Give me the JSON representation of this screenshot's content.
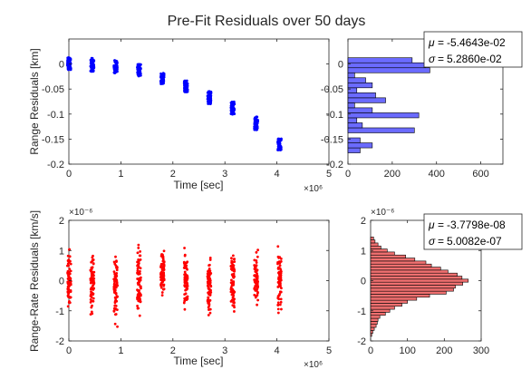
{
  "figure": {
    "title": "Pre-Fit Residuals over 50 days"
  },
  "chart_data": [
    {
      "type": "scatter",
      "panel": "range-scatter",
      "xlabel": "Time [sec]",
      "ylabel": "Range Residuals [km]",
      "x_exponent_label": "×10⁶",
      "xlim": [
        0,
        5000000
      ],
      "ylim": [
        -0.2,
        0.05
      ],
      "xticks": [
        0,
        1,
        2,
        3,
        4,
        5
      ],
      "xtick_labels": [
        "0",
        "1",
        "2",
        "3",
        "4",
        "5"
      ],
      "yticks": [
        0,
        -0.05,
        -0.1,
        -0.15,
        -0.2
      ],
      "ytick_labels": [
        "0",
        "-0.05",
        "-0.1",
        "-0.15",
        "-0.2"
      ],
      "color": "#0000ff",
      "series": [
        {
          "x": [
            5000,
            450000,
            900000,
            1350000,
            1800000,
            2250000,
            2700000,
            3150000,
            3600000,
            4050000
          ],
          "y_min": [
            -0.012,
            -0.015,
            -0.018,
            -0.025,
            -0.04,
            -0.057,
            -0.08,
            -0.101,
            -0.132,
            -0.172
          ],
          "y_max": [
            0.013,
            0.012,
            0.008,
            0.0,
            -0.018,
            -0.033,
            -0.054,
            -0.075,
            -0.105,
            -0.149
          ]
        }
      ]
    },
    {
      "type": "bar",
      "orientation": "horizontal",
      "panel": "range-histogram",
      "xlim": [
        0,
        700
      ],
      "ylim": [
        -0.2,
        0.05
      ],
      "xticks": [
        0,
        200,
        400,
        600
      ],
      "xtick_labels": [
        "0",
        "200",
        "400",
        "600"
      ],
      "yticks": [
        0,
        -0.05,
        -0.1,
        -0.15,
        -0.2
      ],
      "ytick_labels": [
        "0",
        "-0.05",
        "-0.1",
        "-0.15",
        "-0.2"
      ],
      "bar_color": "#6b6bff",
      "bins": [
        -0.1725,
        -0.1625,
        -0.1525,
        -0.1425,
        -0.1325,
        -0.1225,
        -0.1125,
        -0.1025,
        -0.0925,
        -0.0825,
        -0.0725,
        -0.0625,
        -0.0525,
        -0.0425,
        -0.0325,
        -0.0225,
        -0.0125,
        -0.0025,
        0.0075
      ],
      "counts": [
        55,
        110,
        55,
        0,
        300,
        65,
        40,
        320,
        110,
        30,
        170,
        125,
        40,
        110,
        80,
        30,
        370,
        350,
        290
      ],
      "bin_width": 0.01,
      "stats": {
        "mu": "-5.4643e-02",
        "sigma": "5.2860e-02"
      }
    },
    {
      "type": "scatter",
      "panel": "range-rate-scatter",
      "xlabel": "Time [sec]",
      "ylabel": "Range-Rate Residuals [km/s]",
      "x_exponent_label": "×10⁶",
      "y_exponent_label": "×10⁻⁶",
      "xlim": [
        0,
        5000000
      ],
      "ylim": [
        -2e-06,
        2e-06
      ],
      "xticks": [
        0,
        1,
        2,
        3,
        4,
        5
      ],
      "xtick_labels": [
        "0",
        "1",
        "2",
        "3",
        "4",
        "5"
      ],
      "yticks": [
        2,
        1,
        0,
        -1,
        -2
      ],
      "ytick_labels": [
        "2",
        "1",
        "0",
        "-1",
        "-2"
      ],
      "color": "#ff0000",
      "series": [
        {
          "x": [
            5000,
            450000,
            900000,
            1350000,
            1800000,
            2250000,
            2700000,
            3150000,
            3600000,
            4050000
          ],
          "y_min_e6": [
            -1.25,
            -1.4,
            -1.85,
            -1.6,
            -0.75,
            -1.2,
            -1.55,
            -1.5,
            -1.35,
            -1.25
          ],
          "y_max_e6": [
            1.3,
            1.2,
            1.3,
            1.45,
            1.25,
            1.3,
            1.25,
            1.35,
            1.2,
            1.2
          ]
        }
      ]
    },
    {
      "type": "bar",
      "orientation": "horizontal",
      "panel": "range-rate-histogram",
      "xlim": [
        0,
        300
      ],
      "ylim": [
        -2e-06,
        2e-06
      ],
      "xticks": [
        0,
        100,
        200,
        300
      ],
      "xtick_labels": [
        "0",
        "100",
        "200",
        "300"
      ],
      "yticks": [
        2,
        1,
        0,
        -1,
        -2
      ],
      "ytick_labels": [
        "2",
        "1",
        "0",
        "-1",
        "-2"
      ],
      "y_exponent_label": "×10⁻⁶",
      "bar_color": "#f07070",
      "bins_e6": [
        -1.8,
        -1.7,
        -1.6,
        -1.5,
        -1.4,
        -1.3,
        -1.2,
        -1.1,
        -1.0,
        -0.9,
        -0.8,
        -0.7,
        -0.6,
        -0.5,
        -0.4,
        -0.3,
        -0.2,
        -0.1,
        0.0,
        0.1,
        0.2,
        0.3,
        0.4,
        0.5,
        0.6,
        0.7,
        0.8,
        0.9,
        1.0,
        1.1,
        1.2,
        1.3,
        1.4
      ],
      "counts": [
        3,
        6,
        10,
        15,
        18,
        20,
        25,
        40,
        52,
        65,
        85,
        100,
        125,
        160,
        205,
        225,
        230,
        250,
        265,
        248,
        235,
        210,
        190,
        165,
        150,
        120,
        95,
        65,
        45,
        28,
        20,
        12,
        8
      ],
      "bin_width_e6": 0.1,
      "stats": {
        "mu": "-3.7798e-08",
        "sigma": "5.0082e-07"
      }
    }
  ]
}
